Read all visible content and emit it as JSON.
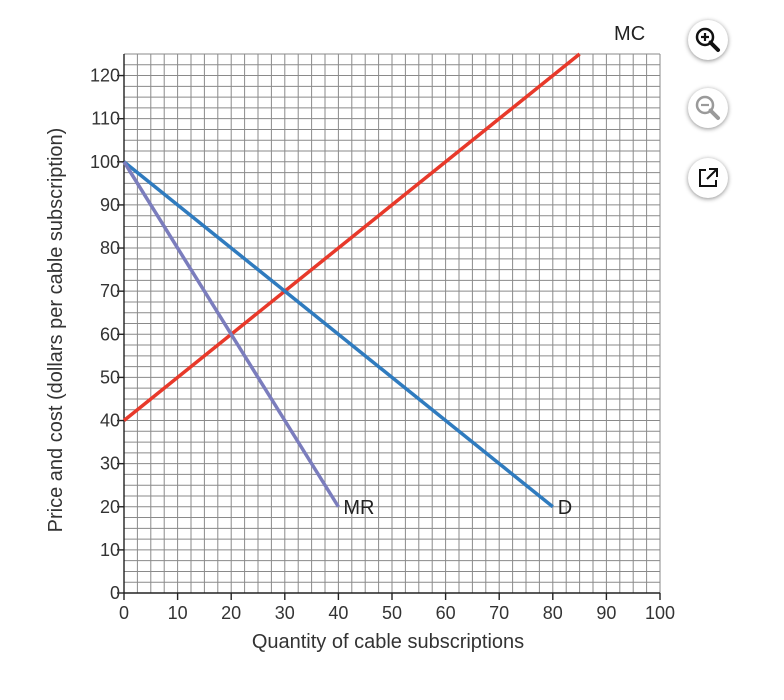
{
  "chart_data": {
    "type": "line",
    "xlabel": "Quantity of cable subscriptions",
    "ylabel": "Price and cost (dollars per cable subscription)",
    "xlim": [
      0,
      100
    ],
    "ylim": [
      0,
      125
    ],
    "x_ticks": [
      0,
      10,
      20,
      30,
      40,
      50,
      60,
      70,
      80,
      90,
      100
    ],
    "y_ticks": [
      0,
      10,
      20,
      30,
      40,
      50,
      60,
      70,
      80,
      90,
      100,
      110,
      120
    ],
    "grid": true,
    "grid_minor_step": {
      "x": 2.5,
      "y": 2.5
    },
    "series": [
      {
        "name": "MC",
        "color": "#e8392a",
        "x": [
          0,
          85
        ],
        "y": [
          40,
          125
        ]
      },
      {
        "name": "D",
        "color": "#2f7bbf",
        "x": [
          0,
          80
        ],
        "y": [
          100,
          20
        ]
      },
      {
        "name": "MR",
        "color": "#7b7dbd",
        "x": [
          0,
          40
        ],
        "y": [
          100,
          20
        ]
      }
    ]
  },
  "toolbar": {
    "zoom_in_icon": "zoom-in-icon",
    "zoom_out_icon": "zoom-out-icon",
    "open_external_icon": "open-external-icon"
  }
}
